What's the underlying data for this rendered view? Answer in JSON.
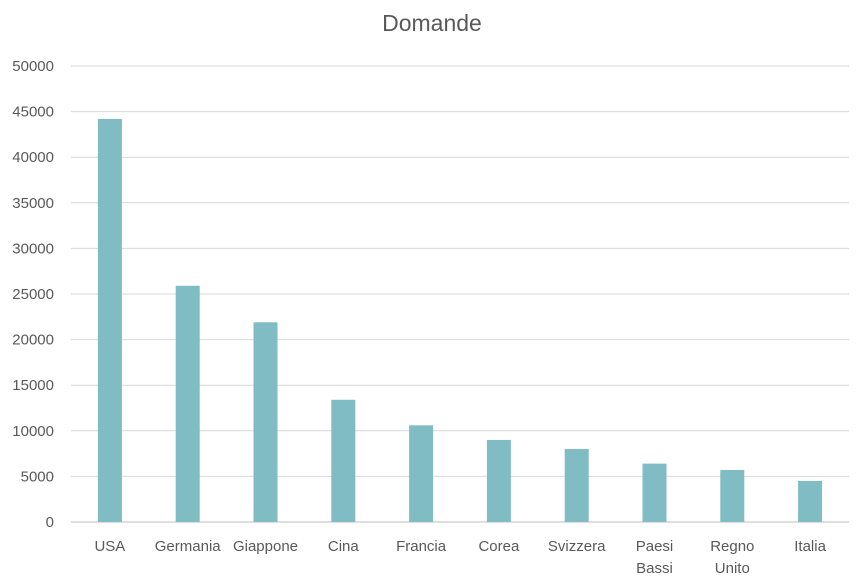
{
  "chart_data": {
    "type": "bar",
    "title": "Domande",
    "xlabel": "",
    "ylabel": "",
    "categories": [
      [
        "USA"
      ],
      [
        "Germania"
      ],
      [
        "Giappone"
      ],
      [
        "Cina"
      ],
      [
        "Francia"
      ],
      [
        "Corea"
      ],
      [
        "Svizzera"
      ],
      [
        "Paesi",
        "Bassi"
      ],
      [
        "Regno",
        "Unito"
      ],
      [
        "Italia"
      ]
    ],
    "values": [
      44200,
      25900,
      21900,
      13400,
      10600,
      9000,
      8000,
      6400,
      5700,
      4500
    ],
    "ylim": [
      0,
      50000
    ],
    "yticks": [
      "0",
      "5000",
      "10000",
      "15000",
      "20000",
      "25000",
      "30000",
      "35000",
      "40000",
      "45000",
      "50000"
    ],
    "grid": true,
    "legend": "none",
    "bar_color": "#7fbcc4",
    "gridline_color": "#d9d9d9",
    "text_color": "#595959"
  }
}
